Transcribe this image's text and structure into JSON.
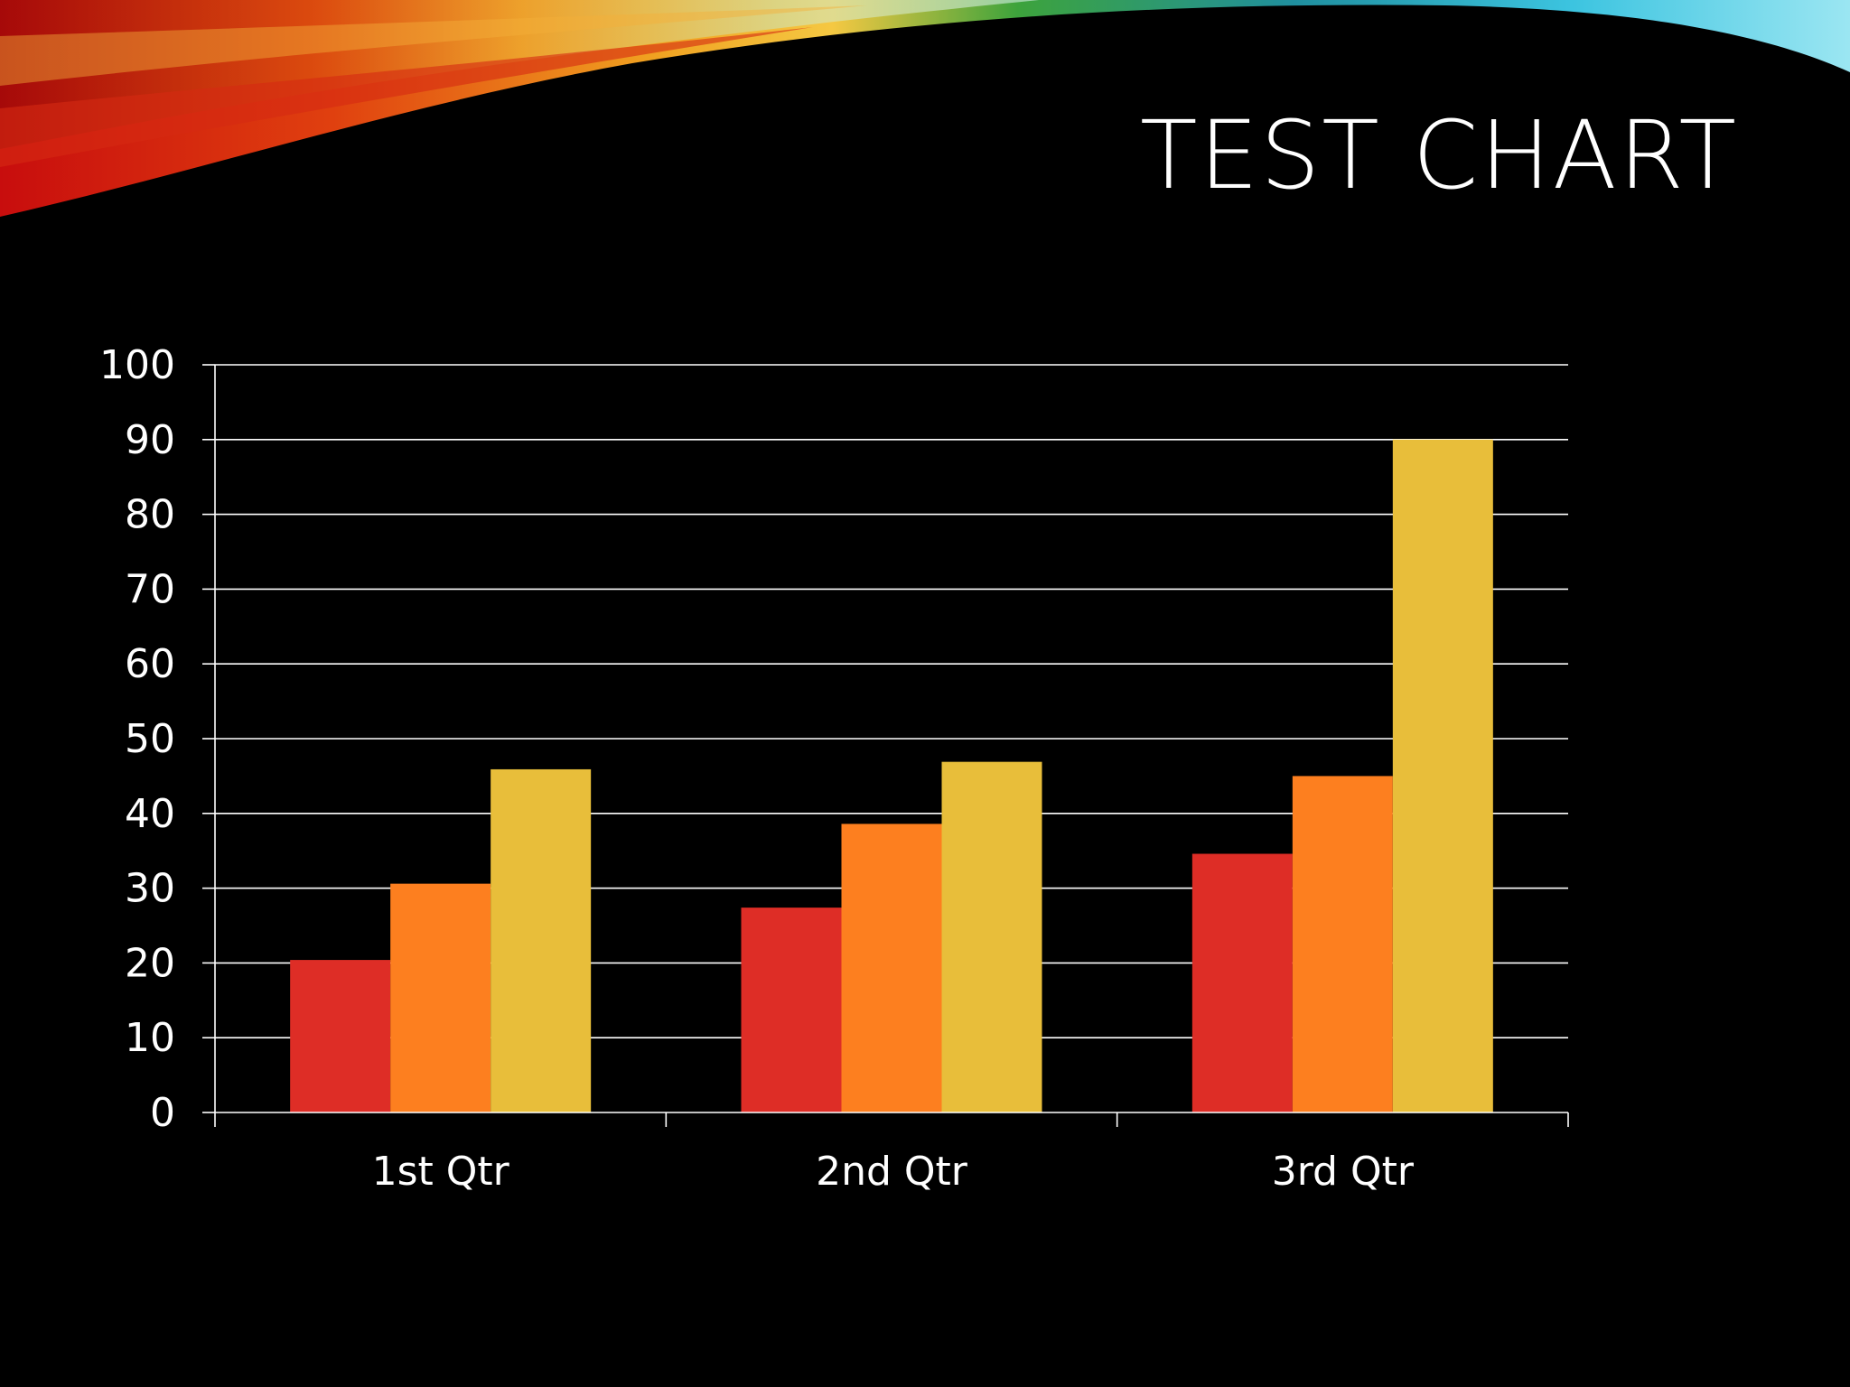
{
  "slide": {
    "title": "TEST CHART"
  },
  "colors": {
    "background": "#000000",
    "series_1": "#de2d26",
    "series_2": "#fd7f1f",
    "series_3": "#e8be3a",
    "gridline": "#ffffff"
  },
  "chart_data": {
    "type": "bar",
    "categories": [
      "1st Qtr",
      "2nd Qtr",
      "3rd Qtr"
    ],
    "series": [
      {
        "values": [
          20.4,
          27.4,
          34.6
        ]
      },
      {
        "values": [
          30.6,
          38.6,
          45.0
        ]
      },
      {
        "values": [
          45.9,
          46.9,
          90.0
        ]
      }
    ],
    "title": "",
    "xlabel": "",
    "ylabel": "",
    "ylim": [
      0,
      100
    ],
    "yticks": [
      0,
      10,
      20,
      30,
      40,
      50,
      60,
      70,
      80,
      90,
      100
    ],
    "grid": true,
    "legend": "none"
  }
}
